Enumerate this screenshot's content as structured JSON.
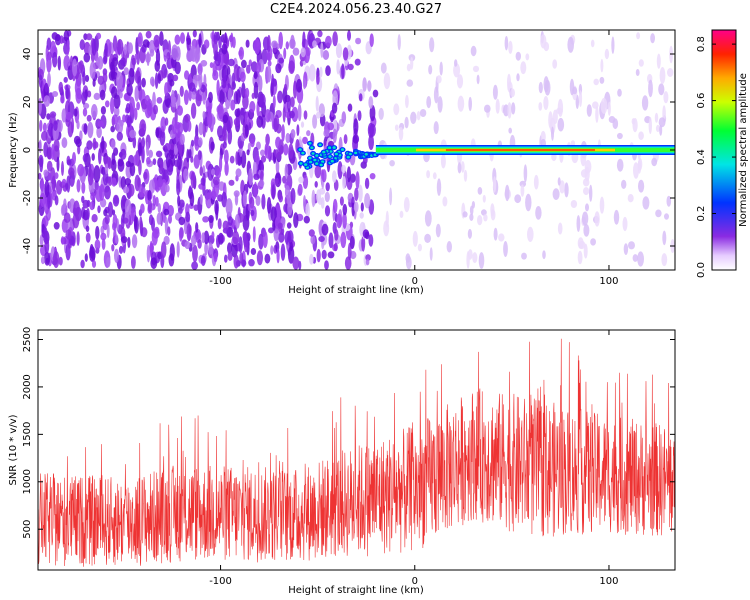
{
  "title": "C2E4.2024.056.23.40.G27",
  "chart_data": [
    {
      "type": "heatmap",
      "xlabel": "Height of straight line (km)",
      "ylabel": "Frequency (Hz)",
      "xlim": [
        -194,
        134
      ],
      "ylim": [
        -50,
        50
      ],
      "xticks": [
        -100,
        0,
        100
      ],
      "yticks": [
        -40,
        -20,
        0,
        20,
        40
      ],
      "colorbar": {
        "label": "Normalized spectral amplitude",
        "range": [
          0.0,
          0.85
        ],
        "ticks": [
          0.0,
          0.2,
          0.4,
          0.6,
          0.8
        ],
        "colormap": "white-purple-blue-cyan-green-yellow-red-magenta"
      },
      "annotations": {
        "noise_region_x": [
          -194,
          -20
        ],
        "signal_line_frequency_hz": 0,
        "signal_line_x": [
          -20,
          134
        ]
      },
      "grid": false
    },
    {
      "type": "line",
      "xlabel": "Height of straight line (km)",
      "ylabel": "SNR (10 * v/v)",
      "xlim": [
        -194,
        134
      ],
      "ylim": [
        70,
        2600
      ],
      "xticks": [
        -100,
        0,
        100
      ],
      "yticks": [
        500,
        1000,
        1500,
        2000,
        2500
      ],
      "series": [
        {
          "color": "#ee3333",
          "trend": [
            {
              "x": -194,
              "low": 100,
              "high": 1100
            },
            {
              "x": -150,
              "low": 100,
              "high": 1050
            },
            {
              "x": -120,
              "low": 150,
              "high": 1200
            },
            {
              "x": -60,
              "low": 150,
              "high": 1150
            },
            {
              "x": -30,
              "low": 200,
              "high": 1400
            },
            {
              "x": 0,
              "low": 250,
              "high": 1600
            },
            {
              "x": 30,
              "low": 600,
              "high": 2000
            },
            {
              "x": 60,
              "low": 400,
              "high": 1900
            },
            {
              "x": 100,
              "low": 450,
              "high": 1700
            },
            {
              "x": 134,
              "low": 400,
              "high": 1600
            }
          ]
        }
      ],
      "grid": false
    }
  ]
}
